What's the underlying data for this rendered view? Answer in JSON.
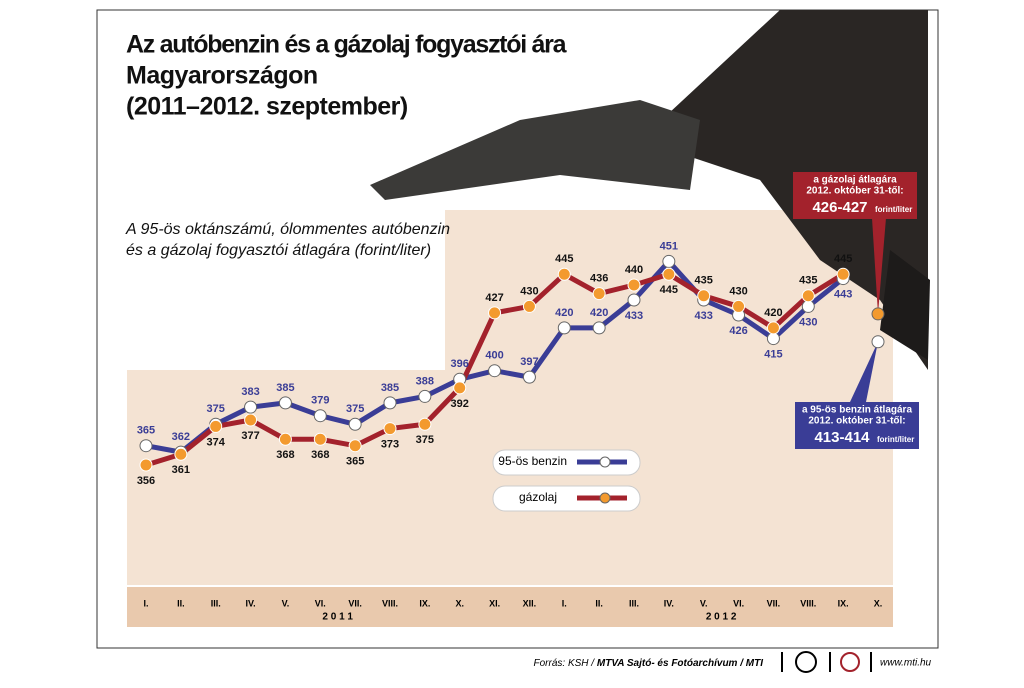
{
  "chart_data": {
    "type": "line",
    "title": [
      "Az autóbenzin és a gázolaj fogyasztói ára",
      "Magyarországon",
      "(2011–2012. szeptember)"
    ],
    "subtitle": [
      "A 95-ös oktánszámú, ólommentes autóbenzin",
      "és a gázolaj fogyasztói átlagára (forint/liter)"
    ],
    "categories": [
      "I.",
      "II.",
      "III.",
      "IV.",
      "V.",
      "VI.",
      "VII.",
      "VIII.",
      "IX.",
      "X.",
      "XI.",
      "XII.",
      "I.",
      "II.",
      "III.",
      "IV.",
      "V.",
      "VI.",
      "VII.",
      "VIII.",
      "IX.",
      "X."
    ],
    "years": [
      {
        "label": "2 0 1 1",
        "from": 0,
        "to": 11
      },
      {
        "label": "2 0 1 2",
        "from": 12,
        "to": 21
      }
    ],
    "series": [
      {
        "name": "95-ös benzin",
        "color": "#3a3d96",
        "marker": "#ffffff",
        "values": [
          365,
          362,
          375,
          383,
          385,
          379,
          375,
          385,
          388,
          396,
          400,
          397,
          420,
          420,
          433,
          451,
          433,
          426,
          415,
          430,
          443,
          null
        ]
      },
      {
        "name": "gázolaj",
        "color": "#a3222c",
        "marker": "#f39a2e",
        "values": [
          356,
          361,
          374,
          377,
          368,
          368,
          365,
          373,
          375,
          392,
          427,
          430,
          445,
          436,
          440,
          445,
          435,
          430,
          420,
          435,
          445,
          null
        ]
      }
    ],
    "callouts": [
      {
        "series": 1,
        "index": 21,
        "value": 426.5,
        "lines": [
          "a gázolaj átlagára",
          "2012. október 31-től:"
        ],
        "price": "426-427",
        "unit": "forint/liter"
      },
      {
        "series": 0,
        "index": 21,
        "value": 413.5,
        "lines": [
          "a 95-ös benzin átlagára",
          "2012. október 31-től:"
        ],
        "price": "413-414",
        "unit": "forint/liter"
      }
    ],
    "ylim": [
      300,
      475
    ],
    "source": "Forrás: KSH / ",
    "source_bold": "MTVA Sajtó- és Fotóarchívum / MTI",
    "website": "www.mti.hu"
  }
}
